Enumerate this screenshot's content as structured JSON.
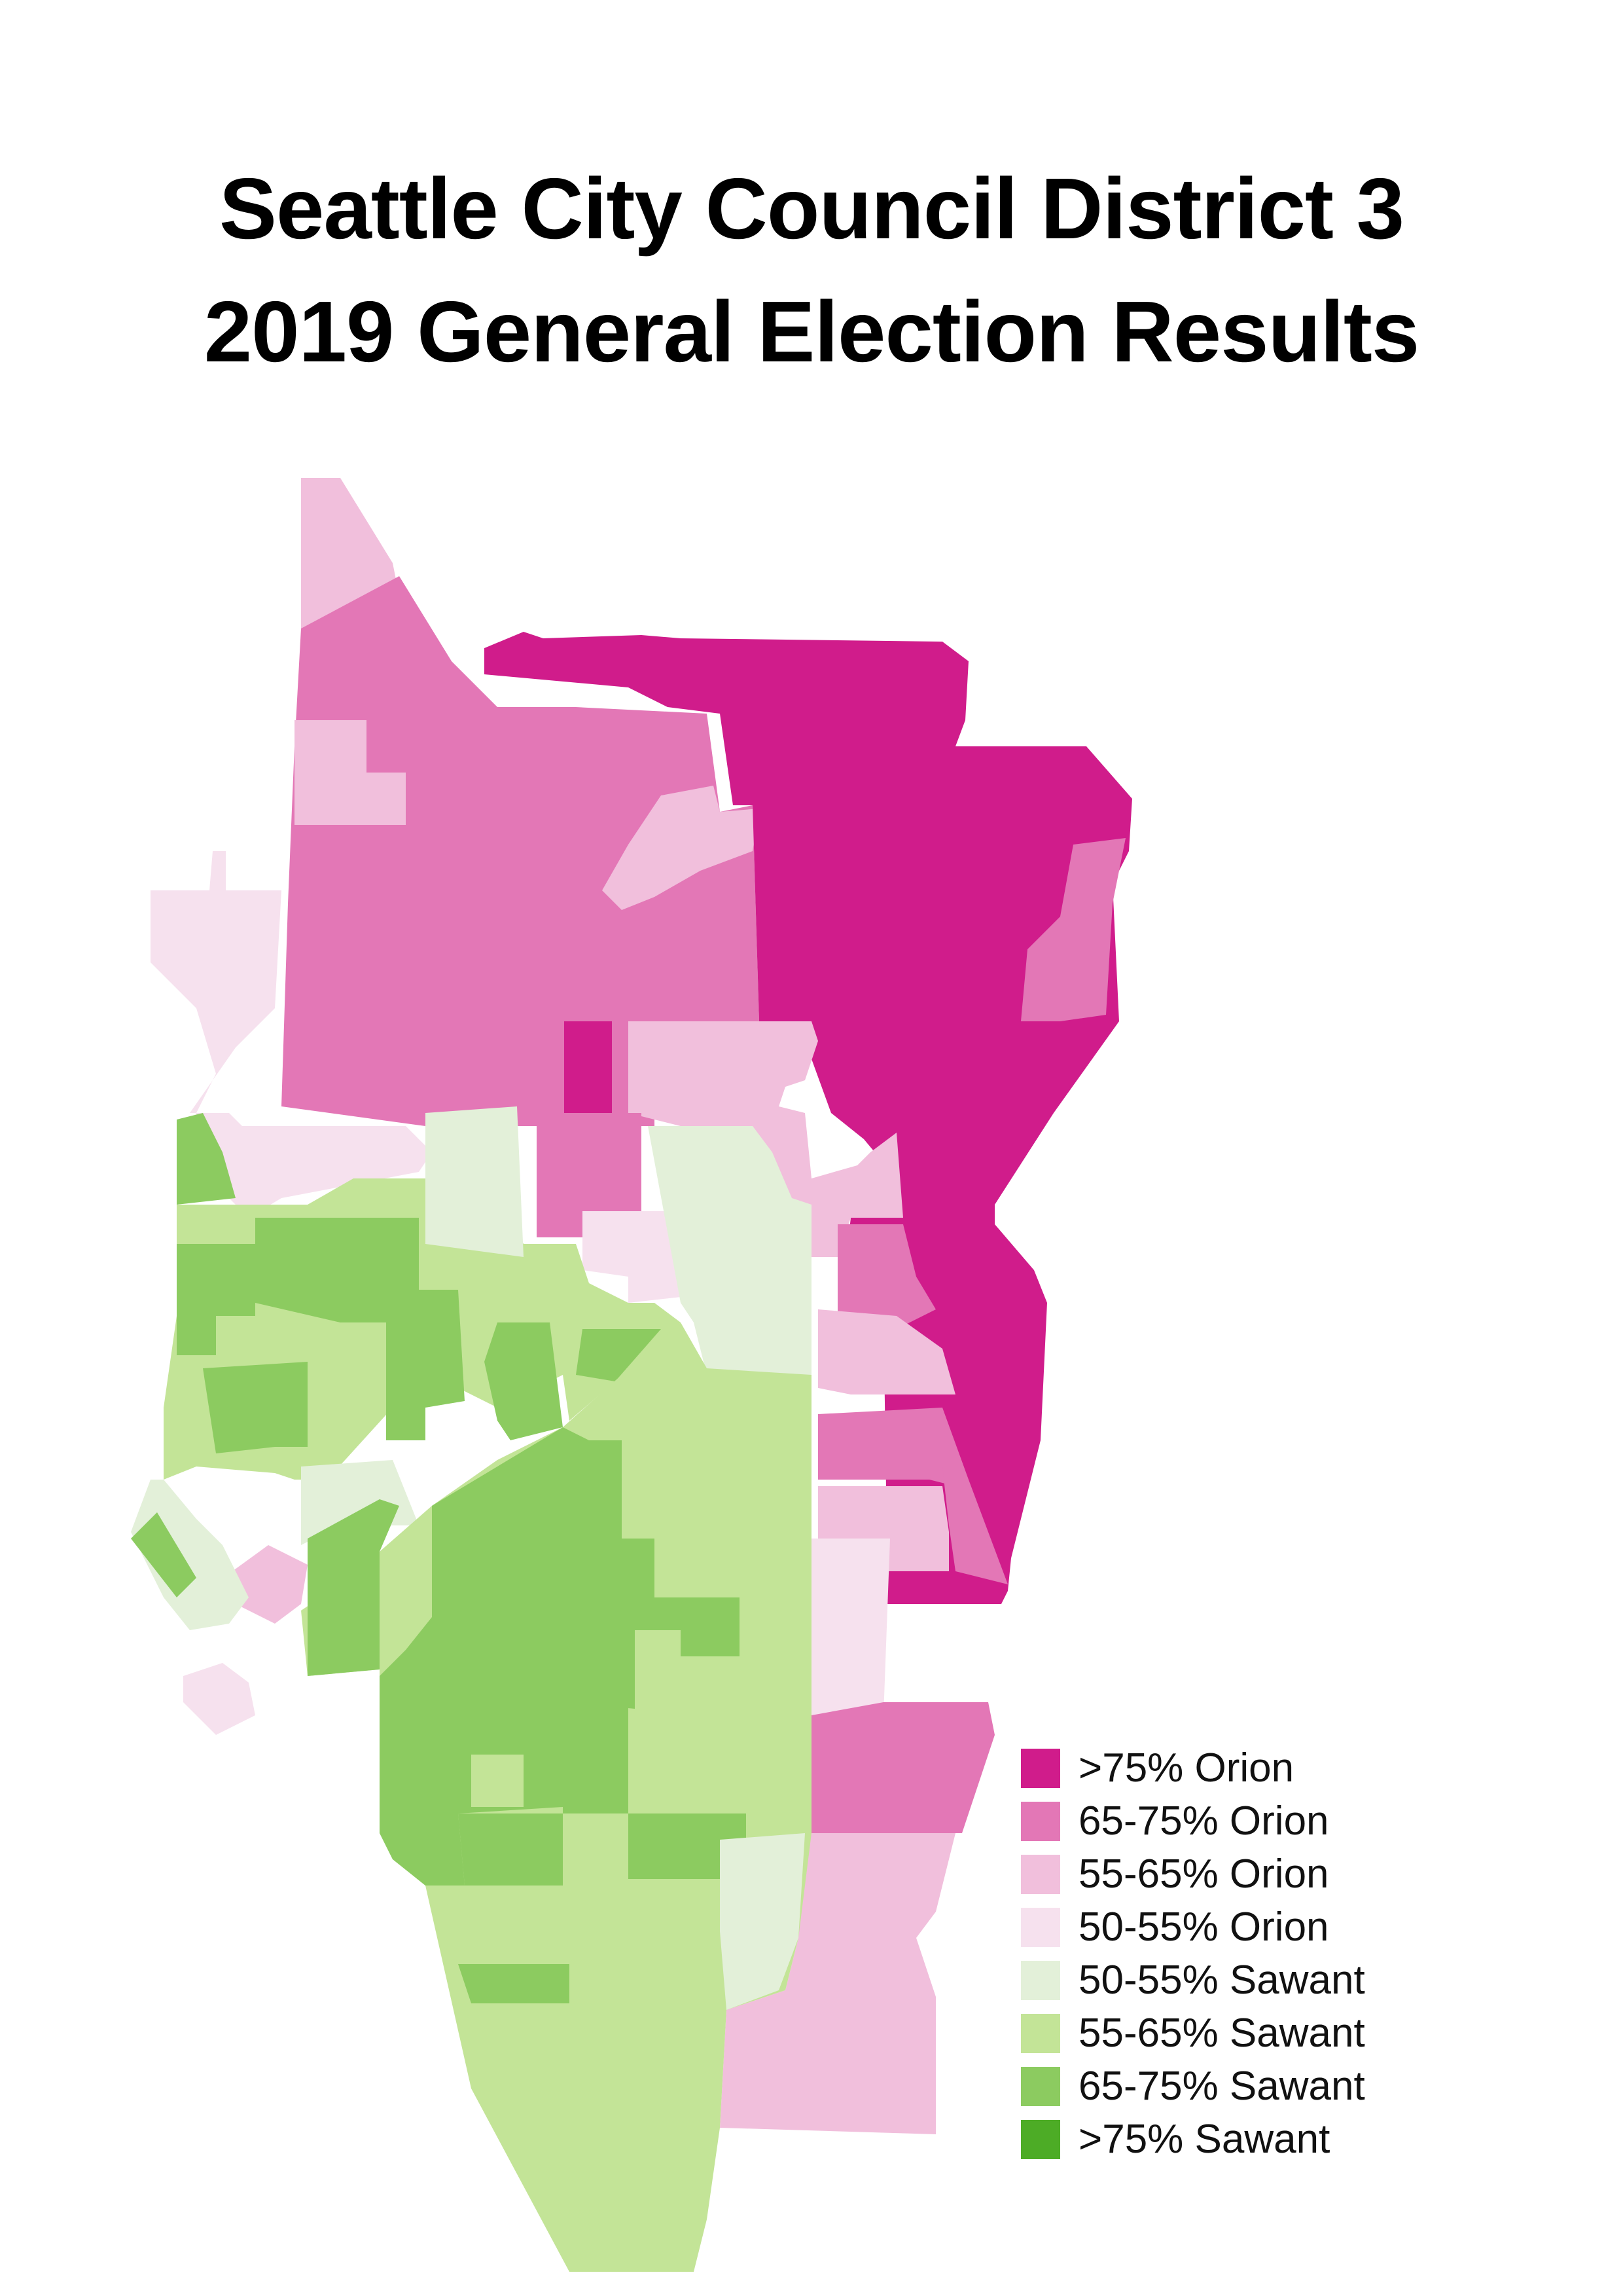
{
  "title": {
    "line1": "Seattle City Council District 3",
    "line2": "2019 General Election Results"
  },
  "legend": [
    {
      "label": ">75% Orion",
      "color": "#d01c8b"
    },
    {
      "label": "65-75% Orion",
      "color": "#e377b6"
    },
    {
      "label": "55-65% Orion",
      "color": "#f1bfdc"
    },
    {
      "label": "50-55% Orion",
      "color": "#f6e1ee"
    },
    {
      "label": "50-55% Sawant",
      "color": "#e3f0d9"
    },
    {
      "label": "55-65% Sawant",
      "color": "#c3e497"
    },
    {
      "label": "65-75% Sawant",
      "color": "#8ccb60"
    },
    {
      "label": ">75% Sawant",
      "color": "#4dac26"
    }
  ]
}
